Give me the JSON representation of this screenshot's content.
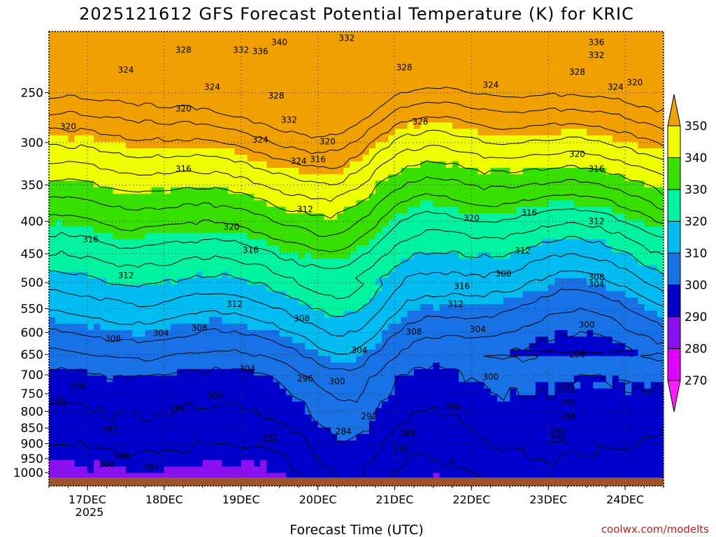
{
  "chart_data": {
    "type": "contour",
    "title": "2025121612 GFS Forecast Potential Temperature (K) for KRIC",
    "xlabel": "Forecast Time (UTC)",
    "ylabel": "",
    "y_axis": {
      "scale": "log",
      "inverted": true,
      "ticks": [
        250,
        300,
        350,
        400,
        450,
        500,
        550,
        600,
        650,
        700,
        750,
        800,
        850,
        900,
        950,
        1000
      ],
      "ylim": [
        200,
        1050
      ],
      "unit": "hPa"
    },
    "x_axis": {
      "ticks": [
        "17DEC",
        "18DEC",
        "19DEC",
        "20DEC",
        "21DEC",
        "22DEC",
        "23DEC",
        "24DEC"
      ],
      "sub_label": "2025",
      "start_hour": -12,
      "end_hour": 180,
      "step_hours": 6
    },
    "grid": true,
    "colorbar": {
      "location": "right",
      "labels": [
        270,
        280,
        290,
        300,
        310,
        320,
        330,
        340,
        350
      ],
      "bins": [
        {
          "range": [
            260,
            270
          ],
          "color": "#ff1cff"
        },
        {
          "range": [
            270,
            280
          ],
          "color": "#dd00ff"
        },
        {
          "range": [
            280,
            290
          ],
          "color": "#8a10f0"
        },
        {
          "range": [
            290,
            300
          ],
          "color": "#0000cc"
        },
        {
          "range": [
            300,
            310
          ],
          "color": "#1872e6"
        },
        {
          "range": [
            310,
            320
          ],
          "color": "#00bcf0"
        },
        {
          "range": [
            320,
            330
          ],
          "color": "#00f3a0"
        },
        {
          "range": [
            330,
            340
          ],
          "color": "#38e000"
        },
        {
          "range": [
            340,
            350
          ],
          "color": "#f0ff00"
        },
        {
          "range": [
            350,
            360
          ],
          "color": "#f0a000"
        }
      ]
    },
    "contour_interval": 4,
    "contour_labels": [
      {
        "value": 340,
        "hour": 60,
        "p": 208
      },
      {
        "value": 336,
        "hour": 54,
        "p": 215
      },
      {
        "value": 336,
        "hour": 159,
        "p": 208
      },
      {
        "value": 332,
        "hour": 48,
        "p": 214
      },
      {
        "value": 332,
        "hour": 81,
        "p": 205
      },
      {
        "value": 332,
        "hour": 159,
        "p": 218
      },
      {
        "value": 332,
        "hour": 63,
        "p": 276
      },
      {
        "value": 328,
        "hour": 30,
        "p": 214
      },
      {
        "value": 328,
        "hour": 59,
        "p": 253
      },
      {
        "value": 328,
        "hour": 99,
        "p": 228
      },
      {
        "value": 328,
        "hour": 153,
        "p": 232
      },
      {
        "value": 328,
        "hour": 104,
        "p": 278
      },
      {
        "value": 324,
        "hour": 12,
        "p": 230
      },
      {
        "value": 324,
        "hour": 39,
        "p": 245
      },
      {
        "value": 324,
        "hour": 126,
        "p": 243
      },
      {
        "value": 324,
        "hour": 165,
        "p": 245
      },
      {
        "value": 324,
        "hour": 54,
        "p": 297
      },
      {
        "value": 324,
        "hour": 66,
        "p": 321
      },
      {
        "value": 320,
        "hour": 30,
        "p": 265
      },
      {
        "value": 320,
        "hour": 171,
        "p": 241
      },
      {
        "value": 320,
        "hour": 75,
        "p": 299
      },
      {
        "value": 320,
        "hour": 153,
        "p": 313
      },
      {
        "value": 320,
        "hour": 120,
        "p": 395
      },
      {
        "value": 320,
        "hour": 45,
        "p": 408
      },
      {
        "value": 320,
        "hour": -6,
        "p": 283
      },
      {
        "value": 316,
        "hour": 30,
        "p": 330
      },
      {
        "value": 316,
        "hour": 72,
        "p": 319
      },
      {
        "value": 316,
        "hour": 159,
        "p": 330
      },
      {
        "value": 316,
        "hour": 138,
        "p": 387
      },
      {
        "value": 316,
        "hour": 1,
        "p": 427
      },
      {
        "value": 316,
        "hour": 51,
        "p": 444
      },
      {
        "value": 316,
        "hour": 117,
        "p": 507
      },
      {
        "value": 312,
        "hour": 68,
        "p": 383
      },
      {
        "value": 312,
        "hour": 159,
        "p": 400
      },
      {
        "value": 312,
        "hour": 136,
        "p": 445
      },
      {
        "value": 312,
        "hour": 12,
        "p": 487
      },
      {
        "value": 312,
        "hour": 46,
        "p": 541
      },
      {
        "value": 312,
        "hour": 115,
        "p": 541
      },
      {
        "value": 308,
        "hour": 159,
        "p": 490
      },
      {
        "value": 308,
        "hour": 130,
        "p": 484
      },
      {
        "value": 308,
        "hour": 67,
        "p": 570
      },
      {
        "value": 308,
        "hour": 8,
        "p": 614
      },
      {
        "value": 308,
        "hour": 35,
        "p": 590
      },
      {
        "value": 308,
        "hour": 102,
        "p": 598
      },
      {
        "value": 304,
        "hour": 159,
        "p": 503
      },
      {
        "value": 304,
        "hour": 23,
        "p": 601
      },
      {
        "value": 304,
        "hour": 85,
        "p": 640
      },
      {
        "value": 304,
        "hour": 122,
        "p": 593
      },
      {
        "value": 304,
        "hour": 50,
        "p": 685
      },
      {
        "value": 300,
        "hour": 156,
        "p": 583
      },
      {
        "value": 300,
        "hour": 126,
        "p": 705
      },
      {
        "value": 300,
        "hour": -3,
        "p": 730
      },
      {
        "value": 300,
        "hour": 78,
        "p": 717
      },
      {
        "value": 300,
        "hour": 40,
        "p": 757
      },
      {
        "value": 296,
        "hour": 153,
        "p": 650
      },
      {
        "value": 296,
        "hour": 68,
        "p": 710
      },
      {
        "value": 296,
        "hour": 28,
        "p": 790
      },
      {
        "value": 296,
        "hour": 114,
        "p": 787
      },
      {
        "value": 296,
        "hour": -9,
        "p": 770
      },
      {
        "value": 292,
        "hour": 150,
        "p": 737
      },
      {
        "value": 292,
        "hour": 7,
        "p": 855
      },
      {
        "value": 292,
        "hour": 88,
        "p": 815
      },
      {
        "value": 292,
        "hour": 57,
        "p": 883
      },
      {
        "value": 288,
        "hour": 150,
        "p": 775
      },
      {
        "value": 288,
        "hour": 11,
        "p": 940
      },
      {
        "value": 288,
        "hour": 100,
        "p": 866
      },
      {
        "value": 284,
        "hour": 150,
        "p": 815
      },
      {
        "value": 284,
        "hour": 80,
        "p": 860
      },
      {
        "value": 284,
        "hour": 20,
        "p": 980
      },
      {
        "value": 280,
        "hour": 147,
        "p": 862
      },
      {
        "value": 280,
        "hour": 6,
        "p": 970
      },
      {
        "value": 280,
        "hour": 98,
        "p": 916
      },
      {
        "value": 276,
        "hour": 147,
        "p": 887
      }
    ],
    "credit": "coolwx.com/modelts",
    "terrain_color": "#a0522d"
  }
}
